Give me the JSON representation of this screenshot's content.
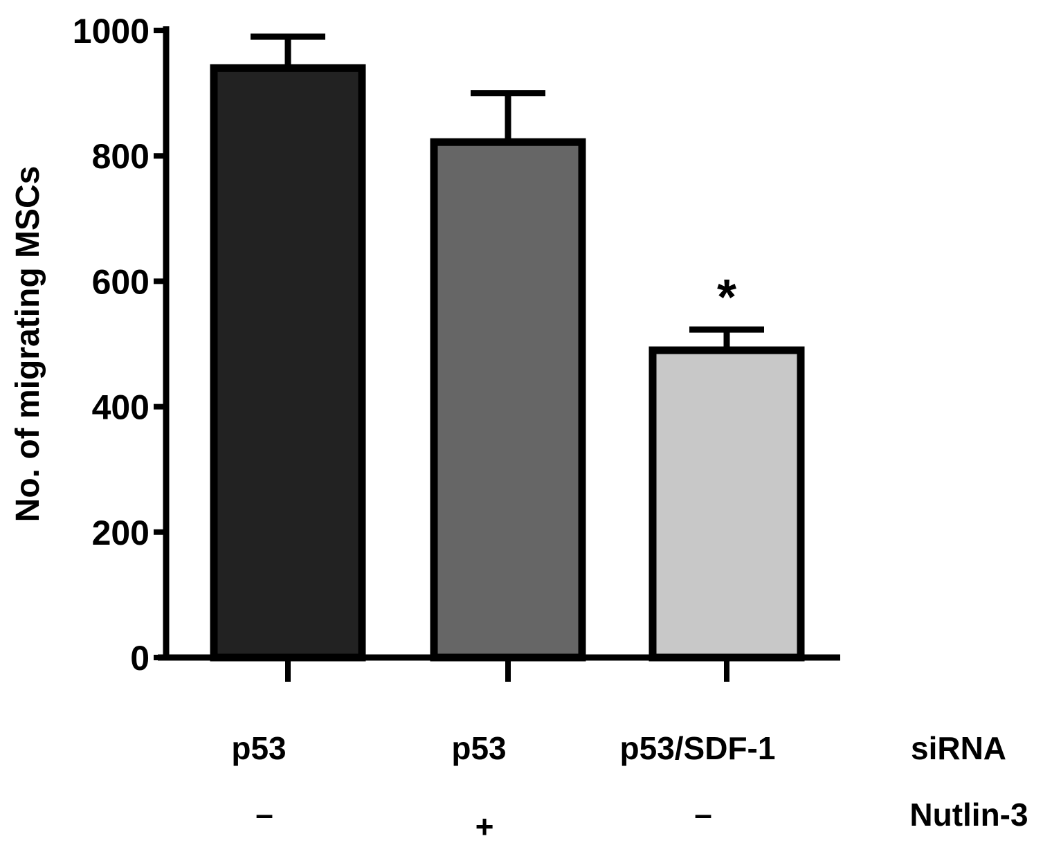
{
  "chart_data": {
    "type": "bar",
    "ylabel": "No. of migrating MSCs",
    "ylim": [
      0,
      1000
    ],
    "yticks": [
      "0",
      "200",
      "400",
      "600",
      "800",
      "1000"
    ],
    "grid": false,
    "bars": [
      {
        "sirna": "p53",
        "nutlin": "–",
        "value": 940,
        "error": 50,
        "color": "#222222",
        "annotation": ""
      },
      {
        "sirna": "p53",
        "nutlin": "+",
        "value": 822,
        "error": 78,
        "color": "#666666",
        "annotation": ""
      },
      {
        "sirna": "p53/SDF-1",
        "nutlin": "–",
        "value": 490,
        "error": 33,
        "color": "#c8c8c8",
        "annotation": "*"
      }
    ],
    "row_labels": {
      "sirna": "siRNA",
      "nutlin": "Nutlin-3"
    }
  }
}
